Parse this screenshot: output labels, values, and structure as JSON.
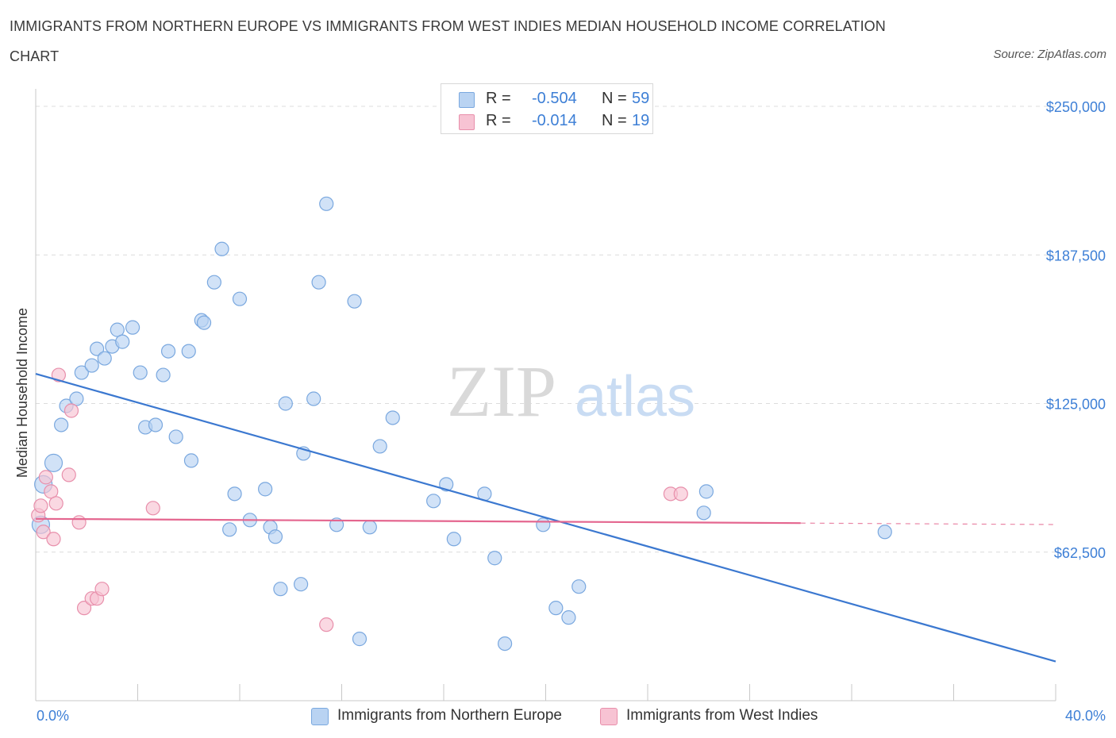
{
  "header": {
    "title": "IMMIGRANTS FROM NORTHERN EUROPE VS IMMIGRANTS FROM WEST INDIES MEDIAN HOUSEHOLD INCOME CORRELATION CHART",
    "source": "Source: ZipAtlas.com"
  },
  "watermark": {
    "zip": "ZIP",
    "atlas": "atlas"
  },
  "legend": {
    "rows": [
      {
        "r_label": "R =",
        "r_value": "-0.504",
        "n_label": "N =",
        "n_value": "59"
      },
      {
        "r_label": "R =",
        "r_value": "-0.014",
        "n_label": "N =",
        "n_value": "19"
      }
    ]
  },
  "colors": {
    "blue_fill": "#b9d3f2",
    "blue_stroke": "#7aa8df",
    "blue_line": "#3b78d0",
    "pink_fill": "#f7c3d3",
    "pink_stroke": "#e88fab",
    "pink_line": "#e4668f",
    "tick_text": "#3d7fd6",
    "grid": "#dcdcdc"
  },
  "chart_data": {
    "type": "scatter",
    "title": "IMMIGRANTS FROM NORTHERN EUROPE VS IMMIGRANTS FROM WEST INDIES MEDIAN HOUSEHOLD INCOME CORRELATION CHART",
    "xlabel": "",
    "ylabel": "Median Household Income",
    "xlim": [
      0,
      40
    ],
    "ylim": [
      0,
      250000
    ],
    "x_tick_labels": [
      "0.0%",
      "40.0%"
    ],
    "y_ticks": [
      62500,
      125000,
      187500,
      250000
    ],
    "y_tick_labels": [
      "$62,500",
      "$125,000",
      "$187,500",
      "$250,000"
    ],
    "grid": true,
    "legend_position": "top-center",
    "series": [
      {
        "name": "Immigrants from Northern Europe",
        "color": "#7aa8df",
        "points": [
          [
            0.2,
            74000
          ],
          [
            0.3,
            91000
          ],
          [
            0.7,
            100000
          ],
          [
            1.0,
            116000
          ],
          [
            1.2,
            124000
          ],
          [
            1.6,
            127000
          ],
          [
            1.8,
            138000
          ],
          [
            2.2,
            141000
          ],
          [
            2.4,
            148000
          ],
          [
            2.7,
            144000
          ],
          [
            3.0,
            149000
          ],
          [
            3.2,
            156000
          ],
          [
            3.4,
            151000
          ],
          [
            3.8,
            157000
          ],
          [
            4.1,
            138000
          ],
          [
            4.3,
            115000
          ],
          [
            4.7,
            116000
          ],
          [
            5.0,
            137000
          ],
          [
            5.2,
            147000
          ],
          [
            5.5,
            111000
          ],
          [
            6.0,
            147000
          ],
          [
            6.1,
            101000
          ],
          [
            6.5,
            160000
          ],
          [
            6.6,
            159000
          ],
          [
            7.0,
            176000
          ],
          [
            7.3,
            190000
          ],
          [
            7.6,
            72000
          ],
          [
            7.8,
            87000
          ],
          [
            8.0,
            169000
          ],
          [
            8.4,
            76000
          ],
          [
            9.0,
            89000
          ],
          [
            9.2,
            73000
          ],
          [
            9.4,
            69000
          ],
          [
            9.6,
            47000
          ],
          [
            9.8,
            125000
          ],
          [
            10.4,
            49000
          ],
          [
            10.5,
            104000
          ],
          [
            10.9,
            127000
          ],
          [
            11.1,
            176000
          ],
          [
            11.4,
            209000
          ],
          [
            11.8,
            74000
          ],
          [
            12.5,
            168000
          ],
          [
            12.7,
            26000
          ],
          [
            13.1,
            73000
          ],
          [
            13.5,
            107000
          ],
          [
            14.0,
            119000
          ],
          [
            15.6,
            84000
          ],
          [
            16.1,
            91000
          ],
          [
            16.4,
            68000
          ],
          [
            17.6,
            87000
          ],
          [
            18.0,
            60000
          ],
          [
            18.4,
            24000
          ],
          [
            19.9,
            74000
          ],
          [
            20.4,
            39000
          ],
          [
            20.9,
            35000
          ],
          [
            21.3,
            48000
          ],
          [
            26.2,
            79000
          ],
          [
            26.3,
            88000
          ],
          [
            33.3,
            71000
          ]
        ],
        "trend": {
          "x": [
            0,
            40
          ],
          "y": [
            137500,
            16500
          ]
        }
      },
      {
        "name": "Immigrants from West Indies",
        "color": "#e88fab",
        "points": [
          [
            0.1,
            78000
          ],
          [
            0.2,
            82000
          ],
          [
            0.3,
            71000
          ],
          [
            0.4,
            94000
          ],
          [
            0.6,
            88000
          ],
          [
            0.7,
            68000
          ],
          [
            0.8,
            83000
          ],
          [
            0.9,
            137000
          ],
          [
            1.3,
            95000
          ],
          [
            1.4,
            122000
          ],
          [
            1.7,
            75000
          ],
          [
            1.9,
            39000
          ],
          [
            2.2,
            43000
          ],
          [
            2.4,
            43000
          ],
          [
            2.6,
            47000
          ],
          [
            4.6,
            81000
          ],
          [
            11.4,
            32000
          ],
          [
            24.9,
            87000
          ],
          [
            25.3,
            87000
          ]
        ],
        "trend": {
          "x": [
            0,
            30
          ],
          "y": [
            76500,
            74700
          ]
        },
        "trend_extension": {
          "x": [
            30,
            40
          ],
          "y": [
            74700,
            74100
          ]
        }
      }
    ]
  }
}
